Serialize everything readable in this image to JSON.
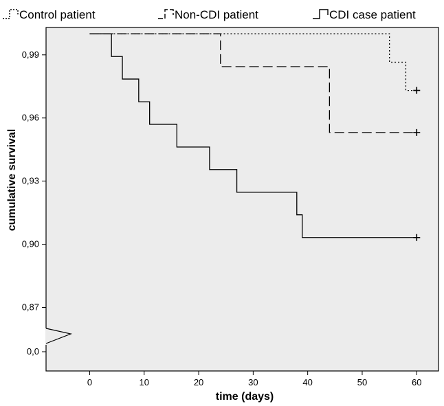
{
  "chart_data": {
    "type": "line",
    "subtype": "kaplan-meier step",
    "xlabel": "time (days)",
    "ylabel": "cumulative survival",
    "xlim": [
      -8,
      64
    ],
    "x_ticks": [
      0,
      10,
      20,
      30,
      40,
      50,
      60
    ],
    "y_ticks": [
      {
        "value": 0.99,
        "label": "0,99"
      },
      {
        "value": 0.96,
        "label": "0,96"
      },
      {
        "value": 0.93,
        "label": "0,93"
      },
      {
        "value": 0.9,
        "label": "0,90"
      },
      {
        "value": 0.87,
        "label": "0,87"
      }
    ],
    "y_axis_break": {
      "below_value": 0.87,
      "label": "0,0"
    },
    "ylim": [
      0.855,
      1.0
    ],
    "grid": false,
    "legend_position": "top",
    "plot_background": "#ececec",
    "series": [
      {
        "name": "Control patient",
        "style": "dotted",
        "steps": [
          [
            0,
            1.0
          ],
          [
            55,
            0.9865
          ],
          [
            58,
            0.9731
          ]
        ],
        "censored": [
          [
            60,
            0.9731
          ]
        ],
        "end_x": 60
      },
      {
        "name": "Non-CDI patient",
        "style": "dashed",
        "steps": [
          [
            0,
            1.0
          ],
          [
            24,
            0.9844
          ],
          [
            44,
            0.9531
          ]
        ],
        "censored": [
          [
            60,
            0.9531
          ]
        ],
        "end_x": 60
      },
      {
        "name": "CDI case patient",
        "style": "solid",
        "steps": [
          [
            0,
            1.0
          ],
          [
            4,
            0.9892
          ],
          [
            6,
            0.9785
          ],
          [
            9,
            0.9677
          ],
          [
            11,
            0.957
          ],
          [
            16,
            0.9462
          ],
          [
            22,
            0.9355
          ],
          [
            27,
            0.9247
          ],
          [
            38,
            0.914
          ],
          [
            39,
            0.9032
          ]
        ],
        "censored": [
          [
            60,
            0.9032
          ]
        ],
        "end_x": 60
      }
    ]
  }
}
